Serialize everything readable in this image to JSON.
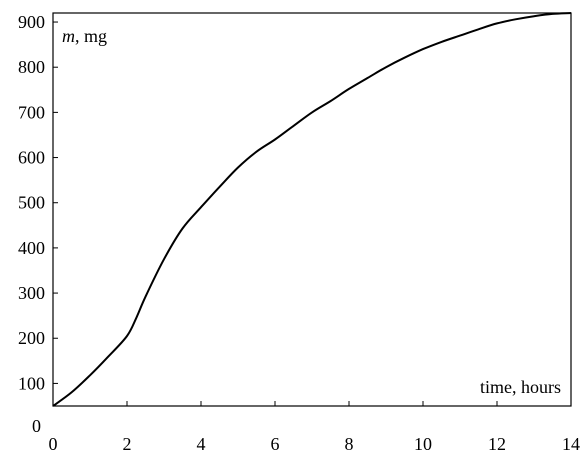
{
  "chart_data": {
    "type": "line",
    "title": "",
    "xlabel": "time, hours",
    "ylabel_var": "m",
    "ylabel_unit": ", mg",
    "xlim": [
      0,
      14
    ],
    "ylim": [
      50,
      920
    ],
    "x_ticks": [
      0,
      2,
      4,
      6,
      8,
      10,
      12,
      14
    ],
    "y_ticks": [
      100,
      200,
      300,
      400,
      500,
      600,
      700,
      800,
      900
    ],
    "extra_y_label": "0",
    "grid": false,
    "legend": "none",
    "line_color": "#000000",
    "series": [
      {
        "x": [
          0,
          0.5,
          1,
          1.5,
          2,
          2.25,
          2.5,
          3,
          3.5,
          4,
          4.5,
          5,
          5.5,
          6,
          6.5,
          7,
          7.5,
          8,
          8.5,
          9,
          9.5,
          10,
          10.5,
          11,
          11.5,
          12,
          12.5,
          13,
          13.5,
          14
        ],
        "y": [
          50,
          80,
          118,
          160,
          205,
          245,
          292,
          375,
          443,
          490,
          535,
          578,
          613,
          640,
          670,
          700,
          725,
          752,
          776,
          800,
          821,
          840,
          856,
          870,
          884,
          897,
          906,
          913,
          918,
          920
        ]
      }
    ]
  }
}
